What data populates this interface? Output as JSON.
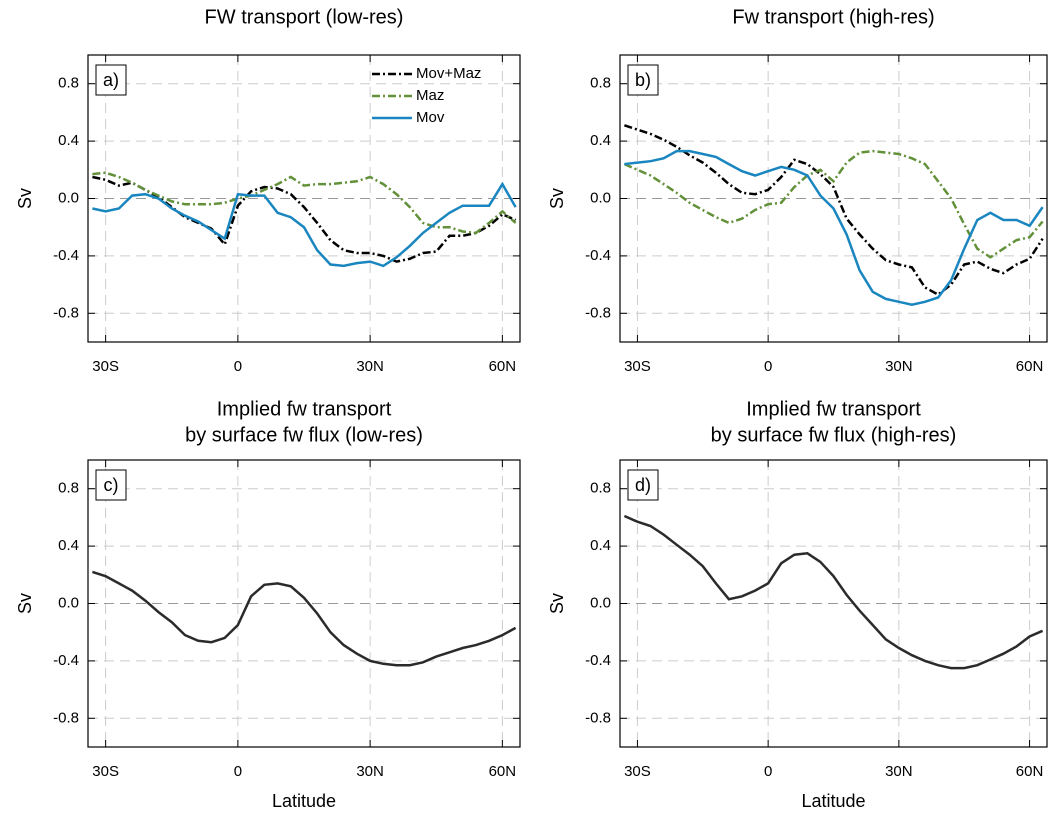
{
  "chart_data": [
    {
      "type": "line",
      "title": "FW transport (low-res)",
      "panel_label": "a)",
      "ylabel": "Sv",
      "x": [
        -33,
        -30,
        -27,
        -24,
        -21,
        -18,
        -15,
        -12,
        -9,
        -6,
        -3,
        0,
        3,
        6,
        9,
        12,
        15,
        18,
        21,
        24,
        27,
        30,
        33,
        36,
        39,
        42,
        45,
        48,
        51,
        54,
        57,
        60,
        63
      ],
      "xlim": [
        -34,
        64
      ],
      "ylim": [
        -1,
        1
      ],
      "xticks": [
        {
          "value": -30,
          "label": "30S"
        },
        0,
        {
          "value": 30,
          "label": "30N"
        },
        {
          "value": 60,
          "label": "60N"
        }
      ],
      "yticks": [
        0.8,
        0.4,
        {
          "value": 0,
          "label": "0.0"
        },
        -0.4,
        -0.8
      ],
      "grid": true,
      "legend": "upper right",
      "series": [
        {
          "name": "Mov+Maz",
          "color": "#000000",
          "dash": "dashed",
          "values": [
            0.15,
            0.13,
            0.09,
            0.11,
            0.06,
            0.01,
            -0.06,
            -0.13,
            -0.17,
            -0.21,
            -0.32,
            -0.05,
            0.05,
            0.08,
            0.07,
            0.03,
            -0.06,
            -0.17,
            -0.29,
            -0.36,
            -0.38,
            -0.38,
            -0.4,
            -0.44,
            -0.42,
            -0.38,
            -0.37,
            -0.26,
            -0.26,
            -0.24,
            -0.19,
            -0.11,
            -0.15
          ]
        },
        {
          "name": "Maz",
          "color": "#62913a",
          "dash": "dashed",
          "values": [
            0.17,
            0.18,
            0.15,
            0.11,
            0.06,
            0.02,
            -0.02,
            -0.04,
            -0.04,
            -0.04,
            -0.03,
            0.0,
            0.02,
            0.06,
            0.1,
            0.15,
            0.09,
            0.1,
            0.1,
            0.11,
            0.12,
            0.15,
            0.1,
            0.03,
            -0.06,
            -0.17,
            -0.2,
            -0.2,
            -0.23,
            -0.24,
            -0.17,
            -0.09,
            -0.17
          ]
        },
        {
          "name": "Mov",
          "color": "#1a86c0",
          "dash": "solid",
          "values": [
            -0.07,
            -0.09,
            -0.07,
            0.02,
            0.03,
            0.0,
            -0.07,
            -0.12,
            -0.16,
            -0.22,
            -0.28,
            0.03,
            0.02,
            0.02,
            -0.1,
            -0.13,
            -0.2,
            -0.36,
            -0.46,
            -0.47,
            -0.45,
            -0.44,
            -0.47,
            -0.41,
            -0.33,
            -0.24,
            -0.17,
            -0.1,
            -0.05,
            -0.05,
            -0.05,
            0.1,
            -0.06
          ]
        }
      ]
    },
    {
      "type": "line",
      "title": "Fw transport (high-res)",
      "panel_label": "b)",
      "ylabel": "Sv",
      "x": [
        -33,
        -30,
        -27,
        -24,
        -21,
        -18,
        -15,
        -12,
        -9,
        -6,
        -3,
        0,
        3,
        6,
        9,
        12,
        15,
        18,
        21,
        24,
        27,
        30,
        33,
        36,
        39,
        42,
        45,
        48,
        51,
        54,
        57,
        60,
        63
      ],
      "xlim": [
        -34,
        64
      ],
      "ylim": [
        -1,
        1
      ],
      "xticks": [
        {
          "value": -30,
          "label": "30S"
        },
        0,
        {
          "value": 30,
          "label": "30N"
        },
        {
          "value": 60,
          "label": "60N"
        }
      ],
      "yticks": [
        0.8,
        0.4,
        {
          "value": 0,
          "label": "0.0"
        },
        -0.4,
        -0.8
      ],
      "grid": true,
      "series": [
        {
          "color": "#000000",
          "dash": "dashed",
          "values": [
            0.51,
            0.48,
            0.45,
            0.41,
            0.36,
            0.3,
            0.25,
            0.18,
            0.1,
            0.04,
            0.03,
            0.06,
            0.15,
            0.27,
            0.24,
            0.17,
            0.08,
            -0.14,
            -0.25,
            -0.35,
            -0.43,
            -0.46,
            -0.48,
            -0.62,
            -0.67,
            -0.6,
            -0.46,
            -0.44,
            -0.49,
            -0.52,
            -0.46,
            -0.42,
            -0.28
          ]
        },
        {
          "color": "#62913a",
          "dash": "dashed",
          "values": [
            0.24,
            0.2,
            0.16,
            0.1,
            0.04,
            -0.03,
            -0.08,
            -0.13,
            -0.17,
            -0.14,
            -0.08,
            -0.04,
            -0.03,
            0.08,
            0.16,
            0.2,
            0.12,
            0.25,
            0.32,
            0.33,
            0.32,
            0.31,
            0.28,
            0.24,
            0.12,
            0.0,
            -0.18,
            -0.35,
            -0.41,
            -0.35,
            -0.29,
            -0.27,
            -0.16
          ]
        },
        {
          "color": "#1a86c0",
          "dash": "solid",
          "values": [
            0.24,
            0.25,
            0.26,
            0.28,
            0.33,
            0.33,
            0.31,
            0.29,
            0.24,
            0.19,
            0.16,
            0.19,
            0.22,
            0.2,
            0.16,
            0.02,
            -0.07,
            -0.25,
            -0.5,
            -0.65,
            -0.7,
            -0.72,
            -0.74,
            -0.72,
            -0.69,
            -0.57,
            -0.35,
            -0.15,
            -0.1,
            -0.15,
            -0.15,
            -0.19,
            -0.06
          ]
        }
      ]
    },
    {
      "type": "line",
      "title": [
        "Implied fw transport",
        "by surface fw flux (low-res)"
      ],
      "panel_label": "c)",
      "ylabel": "Sv",
      "xlabel": "Latitude",
      "x": [
        -33,
        -30,
        -27,
        -24,
        -21,
        -18,
        -15,
        -12,
        -9,
        -6,
        -3,
        0,
        3,
        6,
        9,
        12,
        15,
        18,
        21,
        24,
        27,
        30,
        33,
        36,
        39,
        42,
        45,
        48,
        51,
        54,
        57,
        60,
        63
      ],
      "xlim": [
        -34,
        64
      ],
      "ylim": [
        -1,
        1
      ],
      "xticks": [
        {
          "value": -30,
          "label": "30S"
        },
        0,
        {
          "value": 30,
          "label": "30N"
        },
        {
          "value": 60,
          "label": "60N"
        }
      ],
      "yticks": [
        0.8,
        0.4,
        {
          "value": 0,
          "label": "0.0"
        },
        -0.4,
        -0.8
      ],
      "grid": true,
      "series": [
        {
          "color": "#2b2b2b",
          "dash": "solid",
          "values": [
            0.22,
            0.19,
            0.14,
            0.09,
            0.02,
            -0.06,
            -0.13,
            -0.22,
            -0.26,
            -0.27,
            -0.24,
            -0.15,
            0.05,
            0.13,
            0.14,
            0.12,
            0.04,
            -0.07,
            -0.2,
            -0.29,
            -0.35,
            -0.4,
            -0.42,
            -0.43,
            -0.43,
            -0.41,
            -0.37,
            -0.34,
            -0.31,
            -0.29,
            -0.26,
            -0.22,
            -0.17
          ]
        }
      ]
    },
    {
      "type": "line",
      "title": [
        "Implied fw transport",
        "by surface fw flux (high-res)"
      ],
      "panel_label": "d)",
      "ylabel": "Sv",
      "xlabel": "Latitude",
      "x": [
        -33,
        -30,
        -27,
        -24,
        -21,
        -18,
        -15,
        -12,
        -9,
        -6,
        -3,
        0,
        3,
        6,
        9,
        12,
        15,
        18,
        21,
        24,
        27,
        30,
        33,
        36,
        39,
        42,
        45,
        48,
        51,
        54,
        57,
        60,
        63
      ],
      "xlim": [
        -34,
        64
      ],
      "ylim": [
        -1,
        1
      ],
      "xticks": [
        {
          "value": -30,
          "label": "30S"
        },
        0,
        {
          "value": 30,
          "label": "30N"
        },
        {
          "value": 60,
          "label": "60N"
        }
      ],
      "yticks": [
        0.8,
        0.4,
        {
          "value": 0,
          "label": "0.0"
        },
        -0.4,
        -0.8
      ],
      "grid": true,
      "series": [
        {
          "color": "#2b2b2b",
          "dash": "solid",
          "values": [
            0.61,
            0.57,
            0.54,
            0.48,
            0.41,
            0.34,
            0.26,
            0.14,
            0.03,
            0.05,
            0.09,
            0.14,
            0.28,
            0.34,
            0.35,
            0.29,
            0.19,
            0.06,
            -0.05,
            -0.15,
            -0.25,
            -0.31,
            -0.36,
            -0.4,
            -0.43,
            -0.45,
            -0.45,
            -0.43,
            -0.39,
            -0.35,
            -0.3,
            -0.23,
            -0.19
          ]
        }
      ]
    }
  ]
}
